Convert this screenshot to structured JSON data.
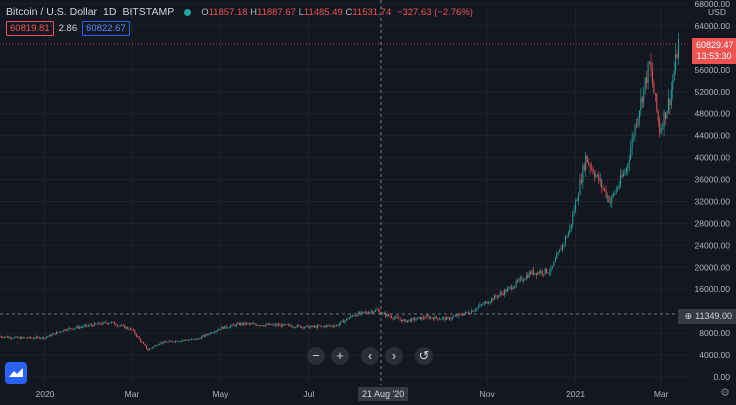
{
  "header": {
    "title": "Bitcoin / U.S. Dollar",
    "interval": "1D",
    "exchange": "BITSTAMP",
    "o_label": "O",
    "o": "11857.18",
    "h_label": "H",
    "h": "11887.67",
    "l_label": "L",
    "l": "11485.49",
    "c_label": "C",
    "c": "11531.74",
    "change": "−327.63 (−2.76%)"
  },
  "trade": {
    "sell": "60819.81",
    "spread": "2.86",
    "buy": "60822.67"
  },
  "price_axis": {
    "currency": "USD",
    "last_price": "60829.47",
    "countdown": "13:53:30",
    "crosshair_price": "11349.00",
    "ticks": [
      "68000.00",
      "64000.00",
      "56000.00",
      "52000.00",
      "48000.00",
      "44000.00",
      "40000.00",
      "36000.00",
      "32000.00",
      "28000.00",
      "24000.00",
      "20000.00",
      "16000.00",
      "8000.00",
      "4000.00",
      "0.00"
    ]
  },
  "time_axis": {
    "labels": [
      "2020",
      "Mar",
      "May",
      "Jul",
      "Nov",
      "2021",
      "Mar"
    ],
    "crosshair_date": "21 Aug '20"
  },
  "controls": {
    "zoom_out": "−",
    "zoom_in": "+",
    "scroll_left": "‹",
    "scroll_right": "›",
    "reset": "↺"
  },
  "icons": {
    "logo": "tradingview-logo",
    "settings": "gear-icon"
  },
  "colors": {
    "up": "#26a69a",
    "down": "#ef5350",
    "bg": "#131722",
    "text": "#b2b5be"
  },
  "chart_data": {
    "type": "candlestick",
    "ylim": [
      0,
      68000
    ],
    "x_start": "2019-12-01",
    "x_end": "2021-03-14",
    "series": [
      {
        "date": "2019-12-01",
        "close": 7400
      },
      {
        "date": "2019-12-15",
        "close": 7100
      },
      {
        "date": "2020-01-01",
        "close": 7200
      },
      {
        "date": "2020-01-15",
        "close": 8700
      },
      {
        "date": "2020-02-01",
        "close": 9400
      },
      {
        "date": "2020-02-15",
        "close": 10000
      },
      {
        "date": "2020-03-01",
        "close": 8600
      },
      {
        "date": "2020-03-12",
        "close": 4900
      },
      {
        "date": "2020-03-20",
        "close": 6200
      },
      {
        "date": "2020-04-01",
        "close": 6600
      },
      {
        "date": "2020-04-15",
        "close": 6900
      },
      {
        "date": "2020-05-01",
        "close": 8900
      },
      {
        "date": "2020-05-15",
        "close": 9700
      },
      {
        "date": "2020-06-01",
        "close": 9500
      },
      {
        "date": "2020-06-15",
        "close": 9400
      },
      {
        "date": "2020-07-01",
        "close": 9100
      },
      {
        "date": "2020-07-20",
        "close": 9400
      },
      {
        "date": "2020-08-01",
        "close": 11300
      },
      {
        "date": "2020-08-17",
        "close": 12200
      },
      {
        "date": "2020-08-21",
        "close": 11531
      },
      {
        "date": "2020-09-05",
        "close": 10200
      },
      {
        "date": "2020-09-20",
        "close": 10900
      },
      {
        "date": "2020-10-05",
        "close": 10600
      },
      {
        "date": "2020-10-20",
        "close": 11900
      },
      {
        "date": "2020-11-01",
        "close": 13700
      },
      {
        "date": "2020-11-15",
        "close": 15900
      },
      {
        "date": "2020-12-01",
        "close": 19000
      },
      {
        "date": "2020-12-15",
        "close": 19400
      },
      {
        "date": "2020-12-28",
        "close": 27000
      },
      {
        "date": "2021-01-08",
        "close": 40000
      },
      {
        "date": "2021-01-15",
        "close": 36800
      },
      {
        "date": "2021-01-25",
        "close": 32000
      },
      {
        "date": "2021-02-05",
        "close": 38000
      },
      {
        "date": "2021-02-12",
        "close": 47000
      },
      {
        "date": "2021-02-21",
        "close": 57000
      },
      {
        "date": "2021-02-28",
        "close": 45000
      },
      {
        "date": "2021-03-07",
        "close": 50800
      },
      {
        "date": "2021-03-13",
        "close": 60829
      }
    ]
  }
}
